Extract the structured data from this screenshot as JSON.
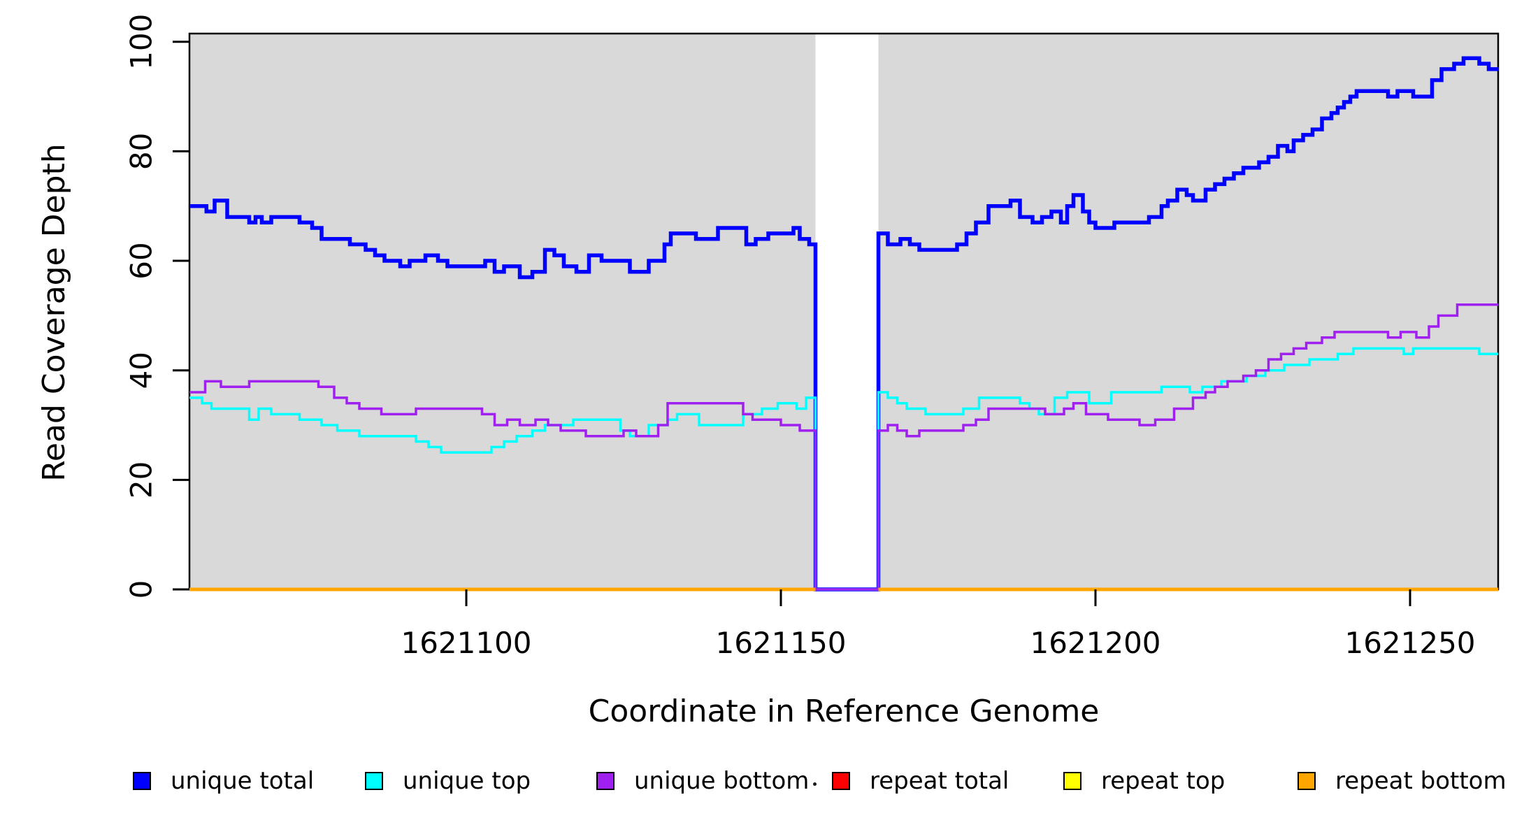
{
  "figure": {
    "y_axis": {
      "title": "Read Coverage Depth",
      "ticks": [
        {
          "value": 0,
          "label": "0"
        },
        {
          "value": 20,
          "label": "20"
        },
        {
          "value": 40,
          "label": "40"
        },
        {
          "value": 60,
          "label": "60"
        },
        {
          "value": 80,
          "label": "80"
        },
        {
          "value": 100,
          "label": "100"
        }
      ]
    },
    "x_axis": {
      "title": "Coordinate in Reference Genome",
      "ticks": [
        {
          "value": 1621100,
          "label": "1621100"
        },
        {
          "value": 1621150,
          "label": "1621150"
        },
        {
          "value": 1621200,
          "label": "1621200"
        },
        {
          "value": 1621250,
          "label": "1621250"
        }
      ]
    },
    "legend": [
      {
        "label": "unique total",
        "color": "#0000FF"
      },
      {
        "label": "unique top",
        "color": "#00FFFF"
      },
      {
        "label": "unique bottom",
        "color": "#A020F0"
      },
      {
        "label": "repeat total",
        "color": "#FF0000"
      },
      {
        "label": "repeat top",
        "color": "#FFFF00"
      },
      {
        "label": "repeat bottom",
        "color": "#FFA500"
      }
    ]
  },
  "chart_data": {
    "type": "line",
    "step": true,
    "title": "",
    "xlabel": "Coordinate in Reference Genome",
    "ylabel": "Read Coverage Depth",
    "xlim": [
      1621056,
      1621264
    ],
    "ylim": [
      0,
      101.5
    ],
    "grid": false,
    "legend_position": "bottom",
    "plot_bg": "#D9D9D9",
    "page_bg": "#FFFFFF",
    "axis_color": "#000000",
    "masked_region": {
      "start": 1621155.5,
      "end": 1621165.5,
      "fill": "#FFFFFF",
      "note": "white band where unique coverage drops to 0 and repeat series are not drawn"
    },
    "series": [
      {
        "name": "unique total",
        "color": "#0000FF",
        "width": 5.5,
        "steps": [
          [
            1621056,
            70
          ],
          [
            1621058.7,
            69
          ],
          [
            1621060,
            71
          ],
          [
            1621062,
            68
          ],
          [
            1621065.5,
            67
          ],
          [
            1621066.5,
            68
          ],
          [
            1621067.5,
            67
          ],
          [
            1621069,
            68
          ],
          [
            1621073.5,
            67
          ],
          [
            1621075.5,
            66
          ],
          [
            1621077,
            64
          ],
          [
            1621081.5,
            63
          ],
          [
            1621084,
            62
          ],
          [
            1621085.5,
            61
          ],
          [
            1621087,
            60
          ],
          [
            1621089.5,
            59
          ],
          [
            1621091,
            60
          ],
          [
            1621093.5,
            61
          ],
          [
            1621095.5,
            60
          ],
          [
            1621097,
            59
          ],
          [
            1621103,
            60
          ],
          [
            1621104.5,
            58
          ],
          [
            1621106,
            59
          ],
          [
            1621108.5,
            57
          ],
          [
            1621110.5,
            58
          ],
          [
            1621112.5,
            62
          ],
          [
            1621114,
            61
          ],
          [
            1621115.5,
            59
          ],
          [
            1621117.5,
            58
          ],
          [
            1621119.5,
            61
          ],
          [
            1621121.5,
            60
          ],
          [
            1621126,
            58
          ],
          [
            1621129,
            60
          ],
          [
            1621131.5,
            63
          ],
          [
            1621132.5,
            65
          ],
          [
            1621136.5,
            64
          ],
          [
            1621140,
            66
          ],
          [
            1621144.5,
            63
          ],
          [
            1621146,
            64
          ],
          [
            1621148,
            65
          ],
          [
            1621152,
            66
          ],
          [
            1621153,
            64
          ],
          [
            1621154.5,
            63
          ],
          [
            1621155.5,
            0
          ],
          [
            1621165.5,
            65
          ],
          [
            1621167,
            63
          ],
          [
            1621169,
            64
          ],
          [
            1621170.5,
            63
          ],
          [
            1621172,
            62
          ],
          [
            1621178,
            63
          ],
          [
            1621179.5,
            65
          ],
          [
            1621181,
            67
          ],
          [
            1621183,
            70
          ],
          [
            1621186.5,
            71
          ],
          [
            1621188,
            68
          ],
          [
            1621190,
            67
          ],
          [
            1621191.5,
            68
          ],
          [
            1621193,
            69
          ],
          [
            1621194.5,
            67
          ],
          [
            1621195.5,
            70
          ],
          [
            1621196.5,
            72
          ],
          [
            1621198,
            69
          ],
          [
            1621199,
            67
          ],
          [
            1621200,
            66
          ],
          [
            1621203,
            67
          ],
          [
            1621208.5,
            68
          ],
          [
            1621210.5,
            70
          ],
          [
            1621211.5,
            71
          ],
          [
            1621213,
            73
          ],
          [
            1621214.5,
            72
          ],
          [
            1621215.5,
            71
          ],
          [
            1621217.5,
            73
          ],
          [
            1621219,
            74
          ],
          [
            1621220.5,
            75
          ],
          [
            1621222,
            76
          ],
          [
            1621223.5,
            77
          ],
          [
            1621226,
            78
          ],
          [
            1621227.5,
            79
          ],
          [
            1621229,
            81
          ],
          [
            1621230.5,
            80
          ],
          [
            1621231.5,
            82
          ],
          [
            1621233,
            83
          ],
          [
            1621234.5,
            84
          ],
          [
            1621236,
            86
          ],
          [
            1621237.5,
            87
          ],
          [
            1621238.5,
            88
          ],
          [
            1621239.5,
            89
          ],
          [
            1621240.5,
            90
          ],
          [
            1621241.5,
            91
          ],
          [
            1621246.5,
            90
          ],
          [
            1621248,
            91
          ],
          [
            1621250.5,
            90
          ],
          [
            1621253.5,
            93
          ],
          [
            1621255,
            95
          ],
          [
            1621257,
            96
          ],
          [
            1621258.5,
            97
          ],
          [
            1621261,
            96
          ],
          [
            1621262.5,
            95
          ]
        ]
      },
      {
        "name": "unique top",
        "color": "#00FFFF",
        "width": 3.5,
        "steps": [
          [
            1621056,
            35
          ],
          [
            1621058,
            34
          ],
          [
            1621059.5,
            33
          ],
          [
            1621065.5,
            31
          ],
          [
            1621067,
            33
          ],
          [
            1621069,
            32
          ],
          [
            1621073.5,
            31
          ],
          [
            1621077,
            30
          ],
          [
            1621079.5,
            29
          ],
          [
            1621083,
            28
          ],
          [
            1621092,
            27
          ],
          [
            1621094,
            26
          ],
          [
            1621096,
            25
          ],
          [
            1621104,
            26
          ],
          [
            1621106,
            27
          ],
          [
            1621108,
            28
          ],
          [
            1621110.5,
            29
          ],
          [
            1621112.5,
            30
          ],
          [
            1621117,
            31
          ],
          [
            1621124.5,
            29
          ],
          [
            1621126,
            28
          ],
          [
            1621129,
            30
          ],
          [
            1621132,
            31
          ],
          [
            1621133.5,
            32
          ],
          [
            1621137,
            30
          ],
          [
            1621144,
            32
          ],
          [
            1621147,
            33
          ],
          [
            1621149.5,
            34
          ],
          [
            1621152.5,
            33
          ],
          [
            1621154,
            35
          ],
          [
            1621155.5,
            0
          ],
          [
            1621165.5,
            36
          ],
          [
            1621167,
            35
          ],
          [
            1621168.5,
            34
          ],
          [
            1621170,
            33
          ],
          [
            1621173,
            32
          ],
          [
            1621179,
            33
          ],
          [
            1621181.5,
            35
          ],
          [
            1621188,
            34
          ],
          [
            1621189.5,
            33
          ],
          [
            1621191,
            32
          ],
          [
            1621193.5,
            35
          ],
          [
            1621195.5,
            36
          ],
          [
            1621199,
            34
          ],
          [
            1621202.5,
            36
          ],
          [
            1621210.5,
            37
          ],
          [
            1621215,
            36
          ],
          [
            1621217,
            37
          ],
          [
            1621220,
            38
          ],
          [
            1621224,
            39
          ],
          [
            1621227,
            40
          ],
          [
            1621230,
            41
          ],
          [
            1621234,
            42
          ],
          [
            1621238.5,
            43
          ],
          [
            1621241,
            44
          ],
          [
            1621249,
            43
          ],
          [
            1621250.5,
            44
          ],
          [
            1621261,
            43
          ]
        ]
      },
      {
        "name": "unique bottom",
        "color": "#A020F0",
        "width": 3.5,
        "steps": [
          [
            1621056,
            36
          ],
          [
            1621058.5,
            38
          ],
          [
            1621061,
            37
          ],
          [
            1621065.5,
            38
          ],
          [
            1621076.5,
            37
          ],
          [
            1621079,
            35
          ],
          [
            1621081,
            34
          ],
          [
            1621083,
            33
          ],
          [
            1621086.5,
            32
          ],
          [
            1621092,
            33
          ],
          [
            1621102.5,
            32
          ],
          [
            1621104.5,
            30
          ],
          [
            1621106.5,
            31
          ],
          [
            1621108.5,
            30
          ],
          [
            1621111,
            31
          ],
          [
            1621113,
            30
          ],
          [
            1621115,
            29
          ],
          [
            1621119,
            28
          ],
          [
            1621125,
            29
          ],
          [
            1621127,
            28
          ],
          [
            1621130.5,
            30
          ],
          [
            1621132,
            34
          ],
          [
            1621144,
            32
          ],
          [
            1621145.5,
            31
          ],
          [
            1621150,
            30
          ],
          [
            1621153,
            29
          ],
          [
            1621155.5,
            0
          ],
          [
            1621165.5,
            29
          ],
          [
            1621167,
            30
          ],
          [
            1621168.5,
            29
          ],
          [
            1621170,
            28
          ],
          [
            1621172,
            29
          ],
          [
            1621179,
            30
          ],
          [
            1621181,
            31
          ],
          [
            1621183,
            33
          ],
          [
            1621192,
            32
          ],
          [
            1621195,
            33
          ],
          [
            1621196.5,
            34
          ],
          [
            1621198.5,
            32
          ],
          [
            1621202,
            31
          ],
          [
            1621207,
            30
          ],
          [
            1621209.5,
            31
          ],
          [
            1621212.5,
            33
          ],
          [
            1621215.5,
            35
          ],
          [
            1621217.5,
            36
          ],
          [
            1621219,
            37
          ],
          [
            1621221,
            38
          ],
          [
            1621223.5,
            39
          ],
          [
            1621225.5,
            40
          ],
          [
            1621227.5,
            42
          ],
          [
            1621229.5,
            43
          ],
          [
            1621231.5,
            44
          ],
          [
            1621233.5,
            45
          ],
          [
            1621236,
            46
          ],
          [
            1621238,
            47
          ],
          [
            1621246.5,
            46
          ],
          [
            1621248.5,
            47
          ],
          [
            1621251,
            46
          ],
          [
            1621253,
            48
          ],
          [
            1621254.5,
            50
          ],
          [
            1621257.5,
            52
          ]
        ]
      },
      {
        "name": "repeat total",
        "color": "#FF0000",
        "width": 3,
        "value": 0,
        "flat_segments": [
          [
            1621056,
            1621155.5
          ],
          [
            1621165.5,
            1621264
          ]
        ]
      },
      {
        "name": "repeat top",
        "color": "#FFFF00",
        "width": 3,
        "value": 0,
        "flat_segments": [
          [
            1621056,
            1621155.5
          ],
          [
            1621165.5,
            1621264
          ]
        ]
      },
      {
        "name": "repeat bottom",
        "color": "#FFA500",
        "width": 5,
        "value": 0,
        "flat_segments": [
          [
            1621056,
            1621155.5
          ],
          [
            1621165.5,
            1621264
          ]
        ]
      }
    ]
  }
}
